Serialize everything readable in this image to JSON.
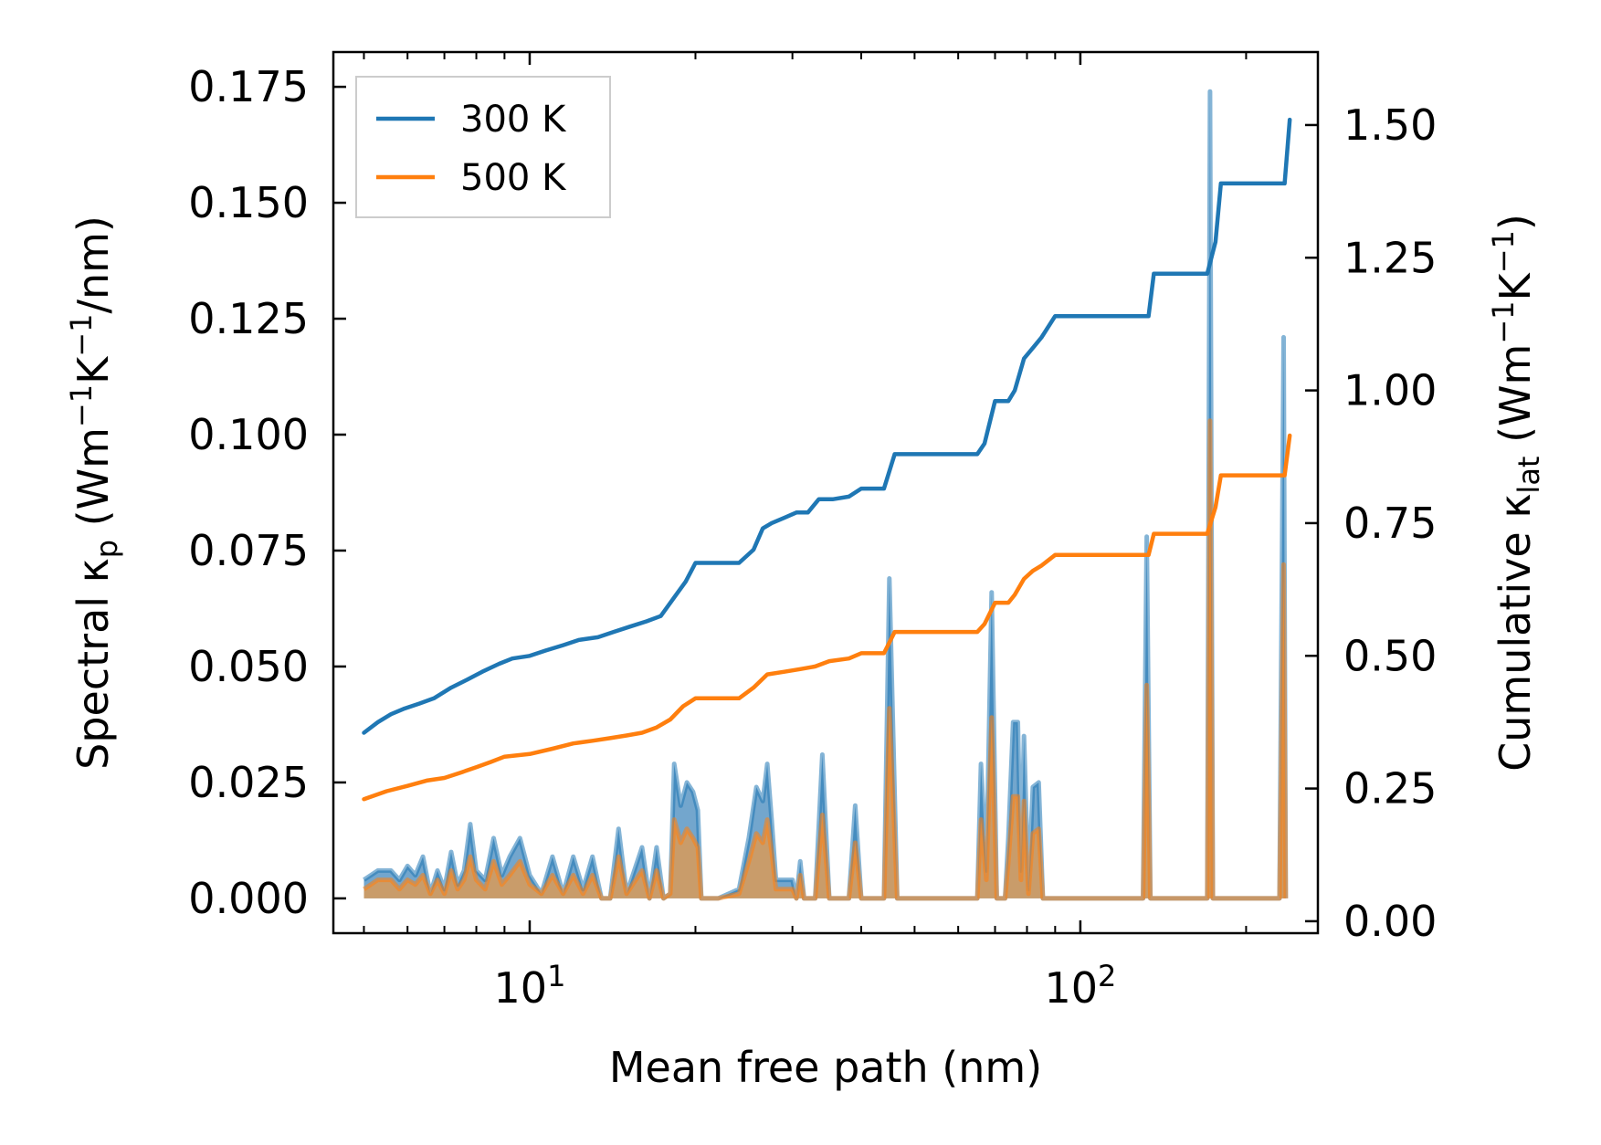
{
  "chart_data": {
    "type": "line",
    "xscale": "log",
    "xlabel": "Mean free path (nm)",
    "ylabel_left": {
      "base": "Spectral κ",
      "sub": "p",
      "unit_prefix": " (Wm",
      "unit_exp1": "−1",
      "unit_mid": "K",
      "unit_exp2": "−1",
      "unit_suffix": "/nm)"
    },
    "ylabel_right": {
      "base": "Cumulative κ",
      "sub": "lat",
      "unit_prefix": " (Wm",
      "unit_exp1": "−1",
      "unit_mid": "K",
      "unit_exp2": "−1",
      "unit_suffix": ")"
    },
    "xlim": [
      4.4,
      270
    ],
    "ylim_left": [
      -0.0075,
      0.1825
    ],
    "ylim_right": [
      -0.0225,
      1.6375
    ],
    "xticks": [
      {
        "value": 10,
        "base": "10",
        "exp": "1"
      },
      {
        "value": 100,
        "base": "10",
        "exp": "2"
      }
    ],
    "yticks_left": [
      "0.000",
      "0.025",
      "0.050",
      "0.075",
      "0.100",
      "0.125",
      "0.150",
      "0.175"
    ],
    "yticks_right": [
      "0.00",
      "0.25",
      "0.50",
      "0.75",
      "1.00",
      "1.25",
      "1.50"
    ],
    "legend": {
      "location": "upper-left",
      "entries": [
        {
          "label": "300 K",
          "color": "#1f77b4"
        },
        {
          "label": "500 K",
          "color": "#ff7f0e"
        }
      ]
    },
    "colors": {
      "s300": "#1f77b4",
      "s500": "#ff7f0e",
      "fill300": "#5a96c4",
      "fill500": "#d89a58"
    },
    "series": [
      {
        "name": "300 K",
        "cumulative": [
          [
            5,
            0.355
          ],
          [
            5.3,
            0.375
          ],
          [
            5.6,
            0.39
          ],
          [
            5.9,
            0.4
          ],
          [
            6.3,
            0.41
          ],
          [
            6.7,
            0.42
          ],
          [
            7.2,
            0.44
          ],
          [
            7.7,
            0.455
          ],
          [
            8.2,
            0.47
          ],
          [
            8.8,
            0.485
          ],
          [
            9.3,
            0.495
          ],
          [
            10,
            0.5
          ],
          [
            10.7,
            0.51
          ],
          [
            11.5,
            0.52
          ],
          [
            12.3,
            0.53
          ],
          [
            13.3,
            0.535
          ],
          [
            14.2,
            0.545
          ],
          [
            15.2,
            0.555
          ],
          [
            16.3,
            0.565
          ],
          [
            17.3,
            0.575
          ],
          [
            18.3,
            0.61
          ],
          [
            19.2,
            0.64
          ],
          [
            20,
            0.675
          ],
          [
            22,
            0.675
          ],
          [
            24,
            0.675
          ],
          [
            25.5,
            0.7
          ],
          [
            26.5,
            0.74
          ],
          [
            27.5,
            0.75
          ],
          [
            29,
            0.76
          ],
          [
            30.5,
            0.77
          ],
          [
            32,
            0.77
          ],
          [
            33.5,
            0.795
          ],
          [
            35.5,
            0.795
          ],
          [
            38,
            0.8
          ],
          [
            40,
            0.815
          ],
          [
            44,
            0.815
          ],
          [
            46,
            0.88
          ],
          [
            55,
            0.88
          ],
          [
            65,
            0.88
          ],
          [
            67,
            0.9
          ],
          [
            70,
            0.98
          ],
          [
            74,
            0.98
          ],
          [
            76,
            1.0
          ],
          [
            79,
            1.06
          ],
          [
            82,
            1.08
          ],
          [
            85,
            1.1
          ],
          [
            90,
            1.14
          ],
          [
            100,
            1.14
          ],
          [
            120,
            1.14
          ],
          [
            133,
            1.14
          ],
          [
            136,
            1.22
          ],
          [
            150,
            1.22
          ],
          [
            170,
            1.22
          ],
          [
            176,
            1.28
          ],
          [
            180,
            1.39
          ],
          [
            200,
            1.39
          ],
          [
            235,
            1.39
          ],
          [
            240,
            1.51
          ]
        ],
        "spectral": [
          [
            5,
            0.004
          ],
          [
            5.3,
            0.006
          ],
          [
            5.6,
            0.006
          ],
          [
            5.8,
            0.004
          ],
          [
            6,
            0.007
          ],
          [
            6.2,
            0.005
          ],
          [
            6.4,
            0.009
          ],
          [
            6.6,
            0.001
          ],
          [
            6.8,
            0.006
          ],
          [
            7,
            0.002
          ],
          [
            7.2,
            0.01
          ],
          [
            7.4,
            0.003
          ],
          [
            7.6,
            0.006
          ],
          [
            7.8,
            0.016
          ],
          [
            8,
            0.006
          ],
          [
            8.3,
            0.004
          ],
          [
            8.6,
            0.013
          ],
          [
            8.9,
            0.005
          ],
          [
            9.2,
            0.009
          ],
          [
            9.6,
            0.013
          ],
          [
            10,
            0.005
          ],
          [
            10.5,
            0.001
          ],
          [
            11,
            0.009
          ],
          [
            11.5,
            0.001
          ],
          [
            12,
            0.009
          ],
          [
            12.5,
            0.002
          ],
          [
            13,
            0.009
          ],
          [
            13.5,
            0
          ],
          [
            14,
            0
          ],
          [
            14.5,
            0.015
          ],
          [
            15,
            0.001
          ],
          [
            16,
            0.011
          ],
          [
            16.5,
            0
          ],
          [
            17,
            0.011
          ],
          [
            17.5,
            0
          ],
          [
            18,
            0.001
          ],
          [
            18.3,
            0.029
          ],
          [
            18.8,
            0.02
          ],
          [
            19.3,
            0.025
          ],
          [
            19.8,
            0.023
          ],
          [
            20.2,
            0.019
          ],
          [
            20.5,
            0
          ],
          [
            22,
            0
          ],
          [
            24,
            0.002
          ],
          [
            25,
            0.013
          ],
          [
            25.8,
            0.024
          ],
          [
            26.5,
            0.021
          ],
          [
            27,
            0.029
          ],
          [
            27.5,
            0.017
          ],
          [
            28,
            0.004
          ],
          [
            29,
            0.004
          ],
          [
            30,
            0.004
          ],
          [
            30.5,
            0
          ],
          [
            31,
            0.008
          ],
          [
            31.5,
            0
          ],
          [
            33,
            0
          ],
          [
            34,
            0.031
          ],
          [
            35,
            0
          ],
          [
            38,
            0
          ],
          [
            39,
            0.02
          ],
          [
            40,
            0
          ],
          [
            44,
            0
          ],
          [
            45,
            0.069
          ],
          [
            46.5,
            0
          ],
          [
            55,
            0
          ],
          [
            65,
            0
          ],
          [
            66,
            0.029
          ],
          [
            67.5,
            0.006
          ],
          [
            69,
            0.066
          ],
          [
            70.5,
            0
          ],
          [
            73,
            0
          ],
          [
            74,
            0.013
          ],
          [
            75.5,
            0.038
          ],
          [
            77,
            0.038
          ],
          [
            78,
            0.006
          ],
          [
            79,
            0.035
          ],
          [
            80.5,
            0.002
          ],
          [
            82,
            0.024
          ],
          [
            84,
            0.025
          ],
          [
            85.5,
            0
          ],
          [
            100,
            0
          ],
          [
            130,
            0
          ],
          [
            132,
            0.078
          ],
          [
            134,
            0
          ],
          [
            170,
            0
          ],
          [
            172,
            0.174
          ],
          [
            174,
            0
          ],
          [
            230,
            0
          ],
          [
            234,
            0.121
          ],
          [
            236,
            0
          ]
        ]
      },
      {
        "name": "500 K",
        "cumulative": [
          [
            5,
            0.23
          ],
          [
            5.5,
            0.245
          ],
          [
            6,
            0.255
          ],
          [
            6.5,
            0.265
          ],
          [
            7,
            0.27
          ],
          [
            7.5,
            0.28
          ],
          [
            8,
            0.29
          ],
          [
            8.5,
            0.3
          ],
          [
            9,
            0.31
          ],
          [
            10,
            0.315
          ],
          [
            11,
            0.325
          ],
          [
            12,
            0.335
          ],
          [
            13,
            0.34
          ],
          [
            14,
            0.345
          ],
          [
            15,
            0.35
          ],
          [
            16,
            0.355
          ],
          [
            17,
            0.365
          ],
          [
            18,
            0.38
          ],
          [
            19,
            0.405
          ],
          [
            20,
            0.42
          ],
          [
            22,
            0.42
          ],
          [
            24,
            0.42
          ],
          [
            25.5,
            0.44
          ],
          [
            27,
            0.465
          ],
          [
            29,
            0.47
          ],
          [
            31,
            0.475
          ],
          [
            33,
            0.48
          ],
          [
            35,
            0.49
          ],
          [
            38,
            0.495
          ],
          [
            40,
            0.505
          ],
          [
            44,
            0.505
          ],
          [
            46,
            0.545
          ],
          [
            55,
            0.545
          ],
          [
            65,
            0.545
          ],
          [
            67,
            0.56
          ],
          [
            70,
            0.6
          ],
          [
            74,
            0.6
          ],
          [
            76,
            0.615
          ],
          [
            79,
            0.645
          ],
          [
            82,
            0.66
          ],
          [
            85,
            0.67
          ],
          [
            90,
            0.69
          ],
          [
            100,
            0.69
          ],
          [
            120,
            0.69
          ],
          [
            133,
            0.69
          ],
          [
            136,
            0.73
          ],
          [
            150,
            0.73
          ],
          [
            170,
            0.73
          ],
          [
            176,
            0.78
          ],
          [
            180,
            0.84
          ],
          [
            200,
            0.84
          ],
          [
            235,
            0.84
          ],
          [
            240,
            0.915
          ]
        ],
        "spectral": [
          [
            5,
            0.002
          ],
          [
            5.3,
            0.004
          ],
          [
            5.6,
            0.004
          ],
          [
            5.8,
            0.002
          ],
          [
            6,
            0.004
          ],
          [
            6.2,
            0.003
          ],
          [
            6.4,
            0.005
          ],
          [
            6.6,
            0.001
          ],
          [
            6.8,
            0.004
          ],
          [
            7,
            0.001
          ],
          [
            7.2,
            0.006
          ],
          [
            7.4,
            0.002
          ],
          [
            7.6,
            0.004
          ],
          [
            7.8,
            0.009
          ],
          [
            8,
            0.004
          ],
          [
            8.3,
            0.002
          ],
          [
            8.6,
            0.008
          ],
          [
            8.9,
            0.003
          ],
          [
            9.2,
            0.005
          ],
          [
            9.6,
            0.008
          ],
          [
            10,
            0.003
          ],
          [
            10.5,
            0.001
          ],
          [
            11,
            0.005
          ],
          [
            11.5,
            0.001
          ],
          [
            12,
            0.005
          ],
          [
            12.5,
            0.001
          ],
          [
            13,
            0.005
          ],
          [
            13.5,
            0
          ],
          [
            14,
            0
          ],
          [
            14.5,
            0.009
          ],
          [
            15,
            0.001
          ],
          [
            16,
            0.006
          ],
          [
            16.5,
            0
          ],
          [
            17,
            0.006
          ],
          [
            17.5,
            0
          ],
          [
            18,
            0.001
          ],
          [
            18.3,
            0.017
          ],
          [
            18.8,
            0.012
          ],
          [
            19.3,
            0.015
          ],
          [
            19.8,
            0.013
          ],
          [
            20.2,
            0.011
          ],
          [
            20.5,
            0
          ],
          [
            22,
            0
          ],
          [
            24,
            0.001
          ],
          [
            25,
            0.008
          ],
          [
            25.8,
            0.014
          ],
          [
            26.5,
            0.012
          ],
          [
            27,
            0.017
          ],
          [
            27.5,
            0.01
          ],
          [
            28,
            0.002
          ],
          [
            29,
            0.002
          ],
          [
            30,
            0.002
          ],
          [
            30.5,
            0
          ],
          [
            31,
            0.005
          ],
          [
            31.5,
            0
          ],
          [
            33,
            0
          ],
          [
            34,
            0.018
          ],
          [
            35,
            0
          ],
          [
            38,
            0
          ],
          [
            39,
            0.012
          ],
          [
            40,
            0
          ],
          [
            44,
            0
          ],
          [
            45,
            0.041
          ],
          [
            46.5,
            0
          ],
          [
            55,
            0
          ],
          [
            65,
            0
          ],
          [
            66,
            0.017
          ],
          [
            67.5,
            0.004
          ],
          [
            69,
            0.039
          ],
          [
            70.5,
            0
          ],
          [
            73,
            0
          ],
          [
            74,
            0.008
          ],
          [
            75.5,
            0.022
          ],
          [
            77,
            0.022
          ],
          [
            78,
            0.004
          ],
          [
            79,
            0.021
          ],
          [
            80.5,
            0.001
          ],
          [
            82,
            0.014
          ],
          [
            84,
            0.015
          ],
          [
            85.5,
            0
          ],
          [
            100,
            0
          ],
          [
            130,
            0
          ],
          [
            132,
            0.046
          ],
          [
            134,
            0
          ],
          [
            170,
            0
          ],
          [
            172,
            0.103
          ],
          [
            174,
            0
          ],
          [
            230,
            0
          ],
          [
            234,
            0.072
          ],
          [
            236,
            0
          ]
        ]
      }
    ]
  }
}
